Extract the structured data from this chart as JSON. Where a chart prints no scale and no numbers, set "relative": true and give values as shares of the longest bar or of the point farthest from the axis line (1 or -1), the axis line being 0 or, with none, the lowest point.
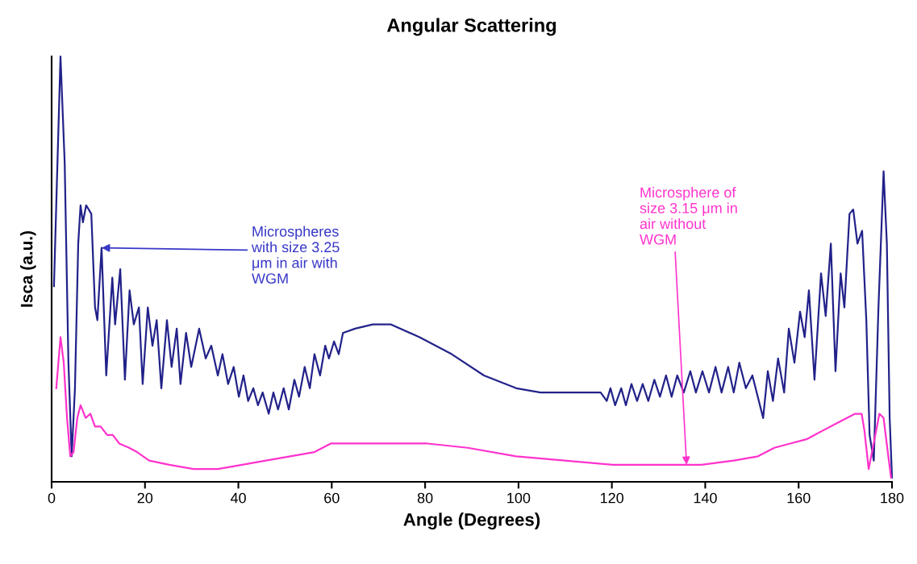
{
  "chart_data": {
    "type": "line",
    "title": "Angular Scattering",
    "xlabel": "Angle (Degrees)",
    "ylabel": "Isca (a.u.)",
    "relative": true,
    "xlim": [
      0,
      180
    ],
    "xticks": [
      0,
      20,
      40,
      60,
      80,
      100,
      120,
      140,
      160,
      180
    ],
    "tick_labels": "x",
    "grid": false,
    "legend": false,
    "marker": "none",
    "line_style": "solid",
    "series": [
      {
        "color": "#22228a",
        "x": [
          0.5,
          1.9,
          2.8,
          3.6,
          4.3,
          5.0,
          5.7,
          6.2,
          6.7,
          7.4,
          8.5,
          9.3,
          9.8,
          10.7,
          11.7,
          13.0,
          13.6,
          14.7,
          15.7,
          16.7,
          17.6,
          18.7,
          19.5,
          20.6,
          21.6,
          22.5,
          23.5,
          24.7,
          25.7,
          26.8,
          27.6,
          28.8,
          29.9,
          31.6,
          33.0,
          34.2,
          35.6,
          36.6,
          37.8,
          39.0,
          40.1,
          41.1,
          42.1,
          43.2,
          44.2,
          45.2,
          46.5,
          47.5,
          48.5,
          49.7,
          50.8,
          52.0,
          53.0,
          54.2,
          55.3,
          56.3,
          57.5,
          58.6,
          59.4,
          60.5,
          61.5,
          62.4,
          65.0,
          68.8,
          72.7,
          78.8,
          85.7,
          92.6,
          99.5,
          104.7,
          109.9,
          115.0,
          117.6,
          118.9,
          119.7,
          120.7,
          122.0,
          123.0,
          124.2,
          125.4,
          126.6,
          127.8,
          129.1,
          130.3,
          131.6,
          132.8,
          134.0,
          135.4,
          136.8,
          138.0,
          139.4,
          140.8,
          142.2,
          143.5,
          144.9,
          146.1,
          147.3,
          148.7,
          150.1,
          152.4,
          153.4,
          154.5,
          155.6,
          156.9,
          157.9,
          159.1,
          160.3,
          161.3,
          162.2,
          163.4,
          164.8,
          165.8,
          166.9,
          167.9,
          169.0,
          169.8,
          170.9,
          171.7,
          172.6,
          173.6,
          174.5,
          175.2,
          176.1,
          177.1,
          178.2,
          178.9,
          179.5,
          180.0
        ],
        "values": [
          0.46,
          1.0,
          0.75,
          0.28,
          0.06,
          0.22,
          0.56,
          0.65,
          0.61,
          0.65,
          0.63,
          0.41,
          0.38,
          0.55,
          0.25,
          0.48,
          0.37,
          0.5,
          0.24,
          0.45,
          0.37,
          0.41,
          0.23,
          0.41,
          0.32,
          0.38,
          0.22,
          0.38,
          0.27,
          0.36,
          0.23,
          0.35,
          0.27,
          0.36,
          0.29,
          0.32,
          0.25,
          0.3,
          0.23,
          0.27,
          0.2,
          0.25,
          0.19,
          0.22,
          0.18,
          0.21,
          0.16,
          0.21,
          0.17,
          0.22,
          0.17,
          0.24,
          0.2,
          0.27,
          0.22,
          0.3,
          0.25,
          0.32,
          0.29,
          0.33,
          0.3,
          0.35,
          0.36,
          0.37,
          0.37,
          0.34,
          0.3,
          0.25,
          0.22,
          0.21,
          0.21,
          0.21,
          0.21,
          0.19,
          0.22,
          0.18,
          0.22,
          0.18,
          0.23,
          0.19,
          0.23,
          0.19,
          0.24,
          0.2,
          0.25,
          0.2,
          0.25,
          0.21,
          0.26,
          0.21,
          0.26,
          0.21,
          0.27,
          0.21,
          0.27,
          0.21,
          0.28,
          0.22,
          0.25,
          0.15,
          0.26,
          0.19,
          0.29,
          0.21,
          0.36,
          0.28,
          0.4,
          0.34,
          0.45,
          0.24,
          0.49,
          0.39,
          0.56,
          0.26,
          0.49,
          0.41,
          0.63,
          0.64,
          0.56,
          0.59,
          0.38,
          0.11,
          0.05,
          0.41,
          0.73,
          0.56,
          0.15,
          0.01
        ]
      },
      {
        "color": "#ff33cc",
        "x": [
          1.0,
          1.9,
          2.6,
          3.3,
          4.0,
          4.7,
          5.5,
          6.2,
          7.3,
          8.3,
          9.3,
          10.5,
          11.9,
          13.1,
          14.5,
          16.6,
          18.3,
          20.9,
          25.2,
          30.4,
          35.6,
          40.8,
          45.9,
          51.1,
          56.3,
          59.8,
          63.2,
          71.9,
          80.5,
          89.1,
          99.5,
          109.9,
          120.2,
          130.6,
          139.2,
          146.1,
          151.3,
          154.8,
          158.2,
          161.7,
          165.1,
          168.6,
          172.1,
          173.5,
          174.1,
          175.0,
          175.9,
          177.3,
          178.2,
          179.1,
          179.8
        ],
        "values": [
          0.22,
          0.34,
          0.28,
          0.15,
          0.06,
          0.07,
          0.15,
          0.18,
          0.15,
          0.16,
          0.13,
          0.13,
          0.11,
          0.11,
          0.09,
          0.08,
          0.07,
          0.05,
          0.04,
          0.03,
          0.03,
          0.04,
          0.05,
          0.06,
          0.07,
          0.09,
          0.09,
          0.09,
          0.09,
          0.08,
          0.06,
          0.05,
          0.04,
          0.04,
          0.04,
          0.05,
          0.06,
          0.08,
          0.09,
          0.1,
          0.12,
          0.14,
          0.16,
          0.16,
          0.12,
          0.03,
          0.08,
          0.16,
          0.15,
          0.07,
          0.01
        ]
      }
    ],
    "annotations": [
      {
        "text": "Microspheres\nwith size 3.25\nμm in air with\nWGM",
        "x": 10.7,
        "y": 0.55
      },
      {
        "text": "Microsphere of\nsize 3.15 μm in\nair without\nWGM",
        "x": 136,
        "y": 0.04
      }
    ]
  }
}
